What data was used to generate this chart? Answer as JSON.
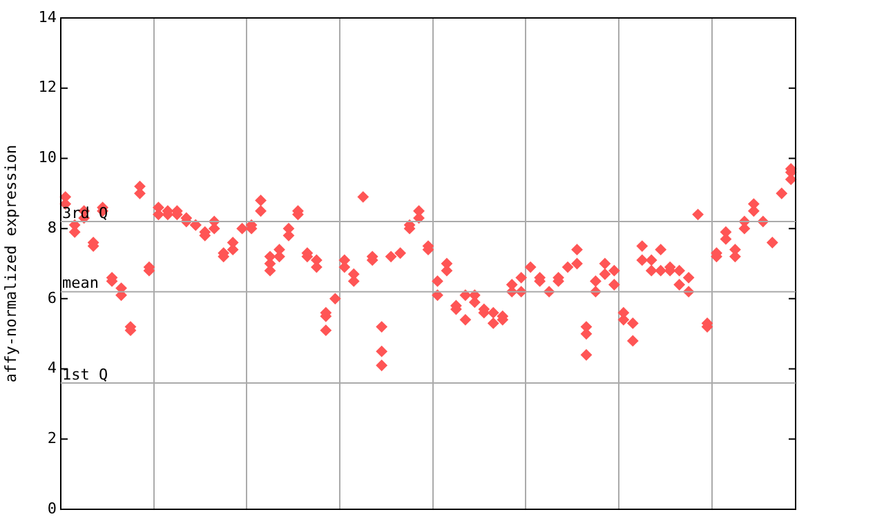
{
  "chart_data": {
    "type": "scatter",
    "ylabel": "affy-normalized expression",
    "categories": [
      null,
      null,
      null,
      null,
      null,
      null,
      null,
      null,
      null,
      null,
      null,
      null,
      null,
      null,
      null,
      null,
      null,
      null,
      null,
      null,
      null,
      null,
      null,
      null,
      null,
      null,
      null,
      null,
      null,
      null,
      null,
      null,
      null,
      null,
      null,
      null,
      null,
      null,
      null,
      null,
      null,
      null,
      null,
      null,
      null,
      null,
      null,
      null,
      null,
      null,
      null,
      null,
      null,
      null,
      null,
      null,
      null,
      null,
      null,
      null,
      null,
      null,
      null,
      null,
      null,
      null,
      null,
      null,
      null,
      null,
      null,
      null,
      null,
      null,
      null,
      null,
      null,
      null,
      null
    ],
    "series": [
      {
        "color": "#ff5555",
        "values": [
          8.9,
          8.1,
          8.5,
          7.6,
          8.6,
          6.6,
          6.3,
          5.2,
          9.2,
          6.9,
          8.6,
          8.5,
          8.5,
          8.3,
          8.1,
          7.9,
          8.2,
          7.3,
          7.6,
          8.0,
          8.1,
          8.8,
          7.2,
          7.4,
          8.0,
          8.5,
          7.3,
          7.1,
          5.6,
          6.0,
          7.1,
          6.7,
          8.9,
          7.2,
          5.2,
          7.2,
          7.3,
          8.1,
          8.5,
          7.5,
          6.5,
          7.0,
          5.8,
          6.1,
          6.1,
          5.7,
          5.6,
          5.5,
          6.4,
          6.6,
          6.9,
          6.6,
          6.2,
          6.6,
          6.9,
          7.4,
          5.2,
          6.5,
          7.0,
          6.8,
          5.6,
          5.3,
          7.5,
          7.1,
          7.4,
          6.9,
          6.8,
          6.6,
          8.4,
          5.3,
          7.3,
          7.9,
          7.4,
          8.2,
          8.7,
          8.2,
          7.6,
          9.0,
          9.7
        ]
      },
      {
        "color": "#ff5555",
        "values": [
          8.7,
          7.9,
          8.3,
          7.5,
          8.5,
          6.5,
          6.1,
          5.1,
          9.0,
          6.8,
          8.4,
          8.4,
          8.4,
          8.2,
          8.1,
          7.8,
          8.0,
          7.2,
          7.4,
          null,
          8.0,
          8.5,
          7.0,
          7.2,
          7.8,
          8.4,
          7.2,
          6.9,
          5.5,
          null,
          6.9,
          6.5,
          null,
          7.1,
          4.5,
          null,
          null,
          8.0,
          8.3,
          7.4,
          6.1,
          6.8,
          5.7,
          5.4,
          5.9,
          5.6,
          5.3,
          5.4,
          6.2,
          6.2,
          null,
          6.5,
          null,
          6.5,
          null,
          7.0,
          5.0,
          6.2,
          6.7,
          6.4,
          5.4,
          4.8,
          7.1,
          6.8,
          6.8,
          6.8,
          6.4,
          6.2,
          null,
          5.2,
          7.2,
          7.7,
          7.2,
          8.0,
          8.5,
          null,
          null,
          null,
          9.6
        ]
      },
      {
        "color": "#ff5555",
        "values": [
          null,
          null,
          null,
          null,
          null,
          null,
          null,
          null,
          null,
          null,
          null,
          null,
          null,
          null,
          null,
          null,
          null,
          null,
          null,
          null,
          null,
          null,
          6.8,
          null,
          null,
          null,
          null,
          null,
          5.1,
          null,
          null,
          null,
          null,
          null,
          4.1,
          null,
          null,
          null,
          null,
          null,
          null,
          null,
          null,
          null,
          null,
          null,
          null,
          null,
          null,
          null,
          null,
          null,
          null,
          null,
          null,
          null,
          4.4,
          null,
          null,
          null,
          null,
          null,
          null,
          null,
          null,
          null,
          null,
          null,
          null,
          null,
          null,
          null,
          null,
          null,
          null,
          null,
          null,
          null,
          9.4
        ]
      }
    ],
    "ylim": [
      0,
      14
    ],
    "yticks": [
      0,
      2,
      4,
      6,
      8,
      10,
      12,
      14
    ],
    "grid": "x",
    "marker": "diamond",
    "ref_lines": [
      {
        "axis": "y",
        "value": 8.2,
        "label": "3rd Q"
      },
      {
        "axis": "y",
        "value": 6.2,
        "label": "mean"
      },
      {
        "axis": "y",
        "value": 3.6,
        "label": "1st Q"
      }
    ]
  }
}
